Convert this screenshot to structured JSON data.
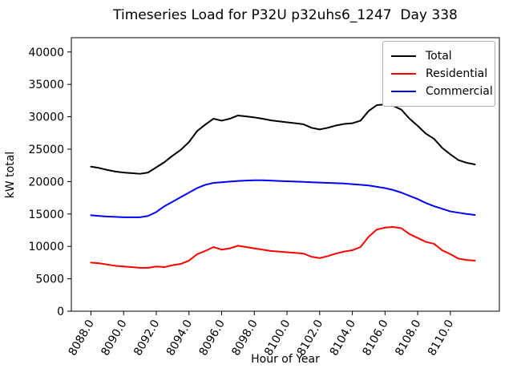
{
  "chart": {
    "title": "Timeseries Load for P32U p32uhs6_1247  Day 338",
    "xlabel": "Hour of Year",
    "ylabel": "kW total",
    "legend": {
      "entries": [
        {
          "label": "Total",
          "color": "#000000"
        },
        {
          "label": "Residential",
          "color": "#ff0000"
        },
        {
          "label": "Commercial",
          "color": "#0000ff"
        }
      ]
    }
  },
  "chart_data": {
    "type": "line",
    "title": "Timeseries Load for P32U p32uhs6_1247  Day 338",
    "xlabel": "Hour of Year",
    "ylabel": "kW total",
    "xlim": [
      8086.8,
      8113.0
    ],
    "ylim": [
      0,
      42200
    ],
    "grid": false,
    "legend_position": "upper right",
    "xticks": [
      8088,
      8090,
      8092,
      8094,
      8096,
      8098,
      8100,
      8102,
      8104,
      8106,
      8108,
      8110
    ],
    "xtick_labels": [
      "8088.0",
      "8090.0",
      "8092.0",
      "8094.0",
      "8096.0",
      "8098.0",
      "8100.0",
      "8102.0",
      "8104.0",
      "8106.0",
      "8108.0",
      "8110.0"
    ],
    "yticks": [
      0,
      5000,
      10000,
      15000,
      20000,
      25000,
      30000,
      35000,
      40000
    ],
    "ytick_labels": [
      "0",
      "5000",
      "10000",
      "15000",
      "20000",
      "25000",
      "30000",
      "35000",
      "40000"
    ],
    "x": [
      8088.0,
      8088.5,
      8089.0,
      8089.5,
      8090.0,
      8090.5,
      8091.0,
      8091.5,
      8092.0,
      8092.5,
      8093.0,
      8093.5,
      8094.0,
      8094.5,
      8095.0,
      8095.5,
      8096.0,
      8096.5,
      8097.0,
      8097.5,
      8098.0,
      8098.5,
      8099.0,
      8099.5,
      8100.0,
      8100.5,
      8101.0,
      8101.5,
      8102.0,
      8102.5,
      8103.0,
      8103.5,
      8104.0,
      8104.5,
      8105.0,
      8105.5,
      8106.0,
      8106.5,
      8107.0,
      8107.5,
      8108.0,
      8108.5,
      8109.0,
      8109.5,
      8110.0,
      8110.5,
      8111.0,
      8111.5
    ],
    "series": [
      {
        "name": "Total",
        "color": "#000000",
        "values": [
          22300,
          22100,
          21800,
          21550,
          21400,
          21300,
          21200,
          21400,
          22200,
          23000,
          24000,
          24900,
          26100,
          27800,
          28800,
          29700,
          29400,
          29700,
          30200,
          30050,
          29900,
          29700,
          29450,
          29300,
          29150,
          29000,
          28850,
          28300,
          28050,
          28300,
          28650,
          28900,
          29000,
          29400,
          30900,
          31800,
          31900,
          31700,
          31100,
          29700,
          28600,
          27400,
          26600,
          25200,
          24200,
          23300,
          22900,
          22650
        ]
      },
      {
        "name": "Residential",
        "color": "#ff0000",
        "values": [
          7500,
          7400,
          7200,
          7000,
          6900,
          6800,
          6700,
          6700,
          6900,
          6800,
          7100,
          7300,
          7800,
          8800,
          9300,
          9900,
          9500,
          9700,
          10100,
          9900,
          9700,
          9500,
          9300,
          9200,
          9100,
          9000,
          8900,
          8400,
          8200,
          8500,
          8900,
          9200,
          9400,
          9900,
          11500,
          12600,
          12900,
          13000,
          12800,
          11900,
          11300,
          10700,
          10400,
          9400,
          8800,
          8100,
          7900,
          7800
        ]
      },
      {
        "name": "Commercial",
        "color": "#0000ff",
        "values": [
          14800,
          14700,
          14600,
          14550,
          14500,
          14500,
          14500,
          14700,
          15300,
          16200,
          16900,
          17600,
          18300,
          19000,
          19500,
          19800,
          19900,
          20000,
          20100,
          20150,
          20200,
          20200,
          20150,
          20100,
          20050,
          20000,
          19950,
          19900,
          19850,
          19800,
          19750,
          19700,
          19600,
          19500,
          19400,
          19200,
          19000,
          18700,
          18300,
          17800,
          17300,
          16700,
          16200,
          15800,
          15400,
          15200,
          15000,
          14850
        ]
      }
    ]
  }
}
